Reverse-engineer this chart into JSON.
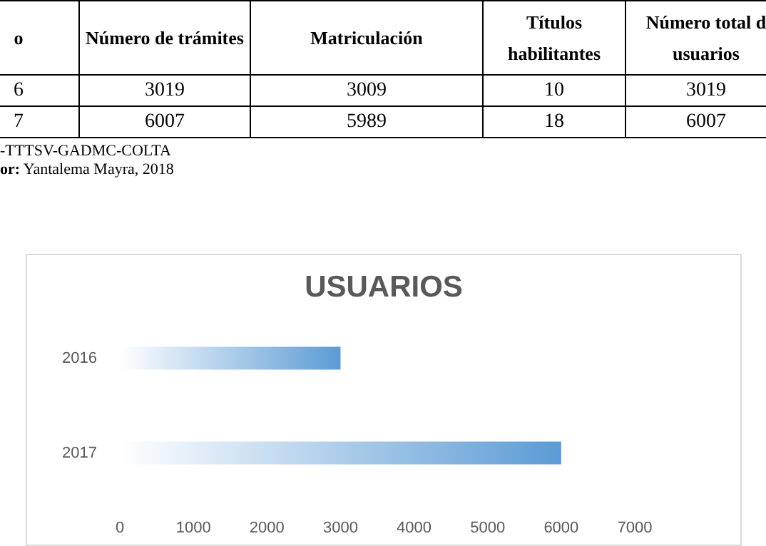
{
  "chart_data": [
    {
      "type": "other",
      "annotations": [
        "o",
        "Número de trámites",
        "Matriculación",
        "Títulos habilitantes",
        "Número total d usuarios",
        "6",
        "3019",
        "3009",
        "10",
        "3019",
        "7",
        "6007",
        "5989",
        "18",
        "6007",
        "-TTTSV-GADMC-COLTA",
        "or: Yantalema Mayra, 2018"
      ]
    },
    {
      "type": "bar",
      "orientation": "horizontal",
      "title": "USUARIOS",
      "categories": [
        "2016",
        "2017"
      ],
      "values": [
        3000,
        6000
      ],
      "color": "#5b9bd5",
      "xlim": [
        0,
        7000
      ],
      "xticks": [
        0,
        1000,
        2000,
        3000,
        4000,
        5000,
        6000,
        7000
      ],
      "grid": false
    }
  ]
}
